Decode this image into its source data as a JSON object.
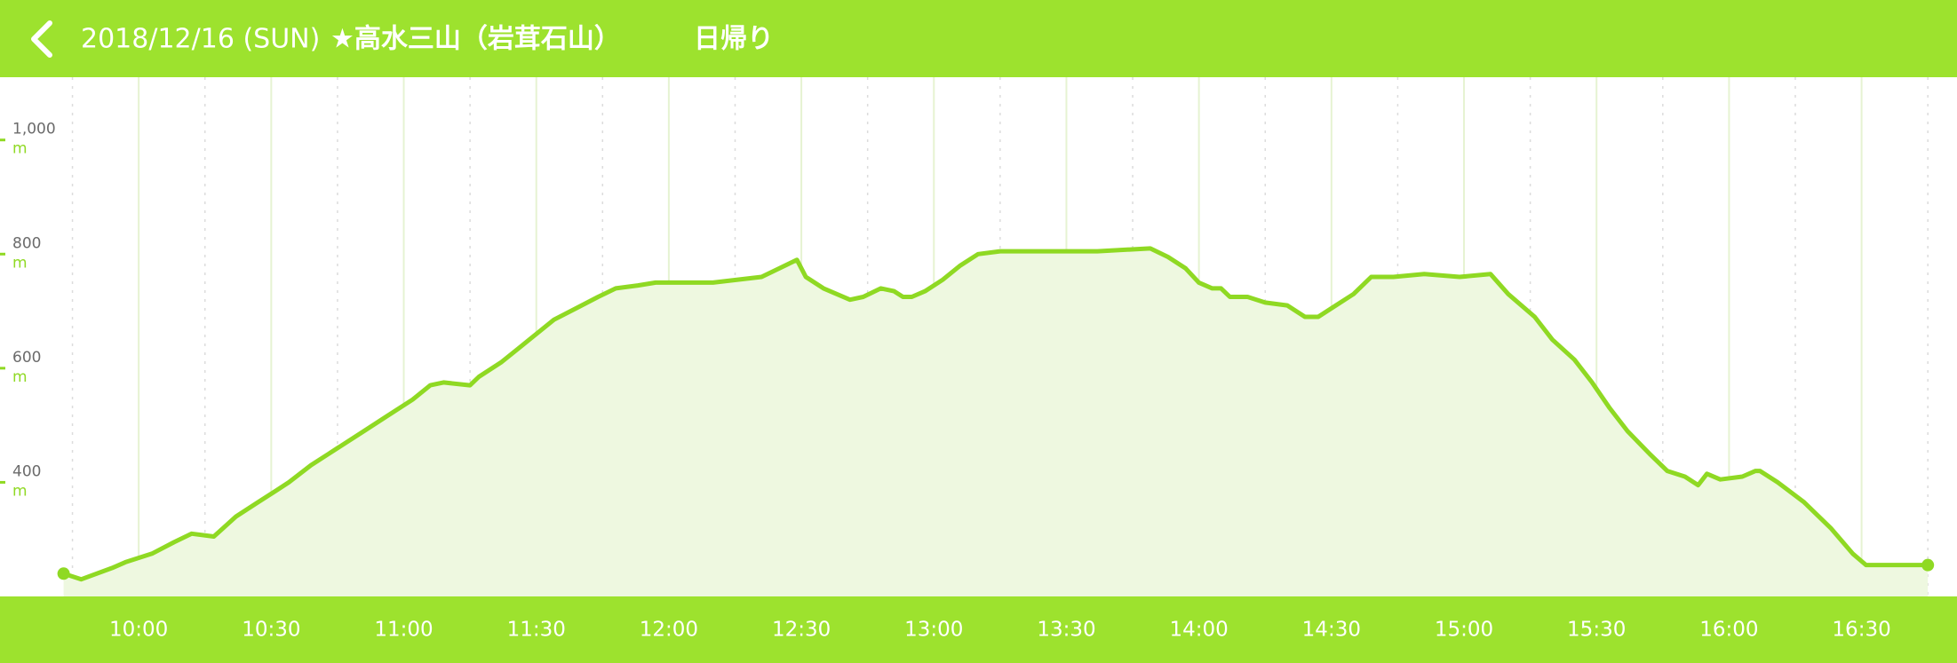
{
  "chart_data": {
    "type": "area",
    "date": "2018/12/16 (SUN)",
    "title": "★高水三山（岩茸石山）",
    "trip_type": "日帰り",
    "y_unit": "m",
    "color": "#8fd923",
    "fill_color": "#eef8e0",
    "grid": true,
    "xlim": [
      568.6,
      1011.6
    ],
    "ylim": [
      200,
      1110
    ],
    "xticks": [
      {
        "value": 600,
        "label": "10:00"
      },
      {
        "value": 630,
        "label": "10:30"
      },
      {
        "value": 660,
        "label": "11:00"
      },
      {
        "value": 690,
        "label": "11:30"
      },
      {
        "value": 720,
        "label": "12:00"
      },
      {
        "value": 750,
        "label": "12:30"
      },
      {
        "value": 780,
        "label": "13:00"
      },
      {
        "value": 810,
        "label": "13:30"
      },
      {
        "value": 840,
        "label": "14:00"
      },
      {
        "value": 870,
        "label": "14:30"
      },
      {
        "value": 900,
        "label": "15:00"
      },
      {
        "value": 930,
        "label": "15:30"
      },
      {
        "value": 960,
        "label": "16:00"
      },
      {
        "value": 990,
        "label": "16:30"
      }
    ],
    "minor_xticks": [
      585,
      615,
      645,
      675,
      705,
      735,
      765,
      795,
      825,
      855,
      885,
      915,
      945,
      975,
      1005
    ],
    "yticks": [
      {
        "value": 1000,
        "label": "1,000"
      },
      800,
      600,
      400
    ],
    "x": [
      583,
      587,
      594,
      597,
      603,
      608,
      612,
      617,
      622,
      627,
      631,
      634,
      639,
      643,
      645,
      651,
      656,
      662,
      666,
      669,
      675,
      677,
      682,
      686,
      690,
      694,
      699,
      704,
      708,
      713,
      717,
      723,
      730,
      741,
      745,
      749,
      751,
      755,
      761,
      764,
      768,
      771,
      773,
      775,
      778,
      782,
      786,
      790,
      795,
      803,
      812,
      817,
      829,
      833,
      837,
      840,
      843,
      845,
      847,
      851,
      855,
      860,
      864,
      867,
      871,
      875,
      879,
      884,
      891,
      899,
      906,
      910,
      916,
      920,
      925,
      929,
      933,
      937,
      942,
      946,
      950,
      953,
      955,
      958,
      963,
      966,
      967,
      971,
      977,
      983,
      988,
      991,
      995,
      1001,
      1005
    ],
    "values": [
      240,
      230,
      250,
      260,
      275,
      295,
      310,
      305,
      340,
      365,
      385,
      400,
      430,
      450,
      460,
      490,
      515,
      545,
      570,
      575,
      570,
      585,
      610,
      635,
      660,
      685,
      705,
      725,
      740,
      745,
      750,
      750,
      750,
      760,
      775,
      790,
      760,
      740,
      720,
      725,
      740,
      735,
      725,
      725,
      735,
      755,
      780,
      800,
      805,
      805,
      805,
      805,
      810,
      795,
      775,
      750,
      740,
      740,
      725,
      725,
      715,
      710,
      690,
      690,
      710,
      730,
      760,
      760,
      765,
      760,
      765,
      730,
      690,
      650,
      615,
      575,
      530,
      490,
      450,
      420,
      410,
      395,
      415,
      405,
      410,
      420,
      420,
      400,
      365,
      320,
      275,
      255,
      255,
      255,
      255
    ]
  }
}
